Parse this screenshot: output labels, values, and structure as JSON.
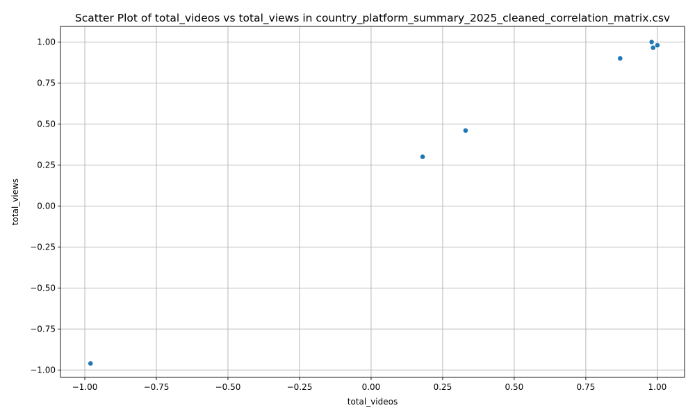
{
  "chart_data": {
    "type": "scatter",
    "title": "Scatter Plot of total_videos vs total_views in country_platform_summary_2025_cleaned_correlation_matrix.csv",
    "xlabel": "total_videos",
    "ylabel": "total_views",
    "xlim": [
      -1.085,
      1.095
    ],
    "ylim": [
      -1.045,
      1.095
    ],
    "xticks": [
      -1.0,
      -0.75,
      -0.5,
      -0.25,
      0.0,
      0.25,
      0.5,
      0.75,
      1.0
    ],
    "xtick_labels": [
      "−1.00",
      "−0.75",
      "−0.50",
      "−0.25",
      "0.00",
      "0.25",
      "0.50",
      "0.75",
      "1.00"
    ],
    "yticks": [
      -1.0,
      -0.75,
      -0.5,
      -0.25,
      0.0,
      0.25,
      0.5,
      0.75,
      1.0
    ],
    "ytick_labels": [
      "−1.00",
      "−0.75",
      "−0.50",
      "−0.25",
      "0.00",
      "0.25",
      "0.50",
      "0.75",
      "1.00"
    ],
    "grid": true,
    "marker_color": "#1f77b4",
    "points": [
      {
        "x": -0.98,
        "y": -0.96
      },
      {
        "x": 0.18,
        "y": 0.3
      },
      {
        "x": 0.33,
        "y": 0.46
      },
      {
        "x": 0.87,
        "y": 0.9
      },
      {
        "x": 0.98,
        "y": 1.0
      },
      {
        "x": 0.985,
        "y": 0.965
      },
      {
        "x": 1.0,
        "y": 0.98
      }
    ]
  }
}
